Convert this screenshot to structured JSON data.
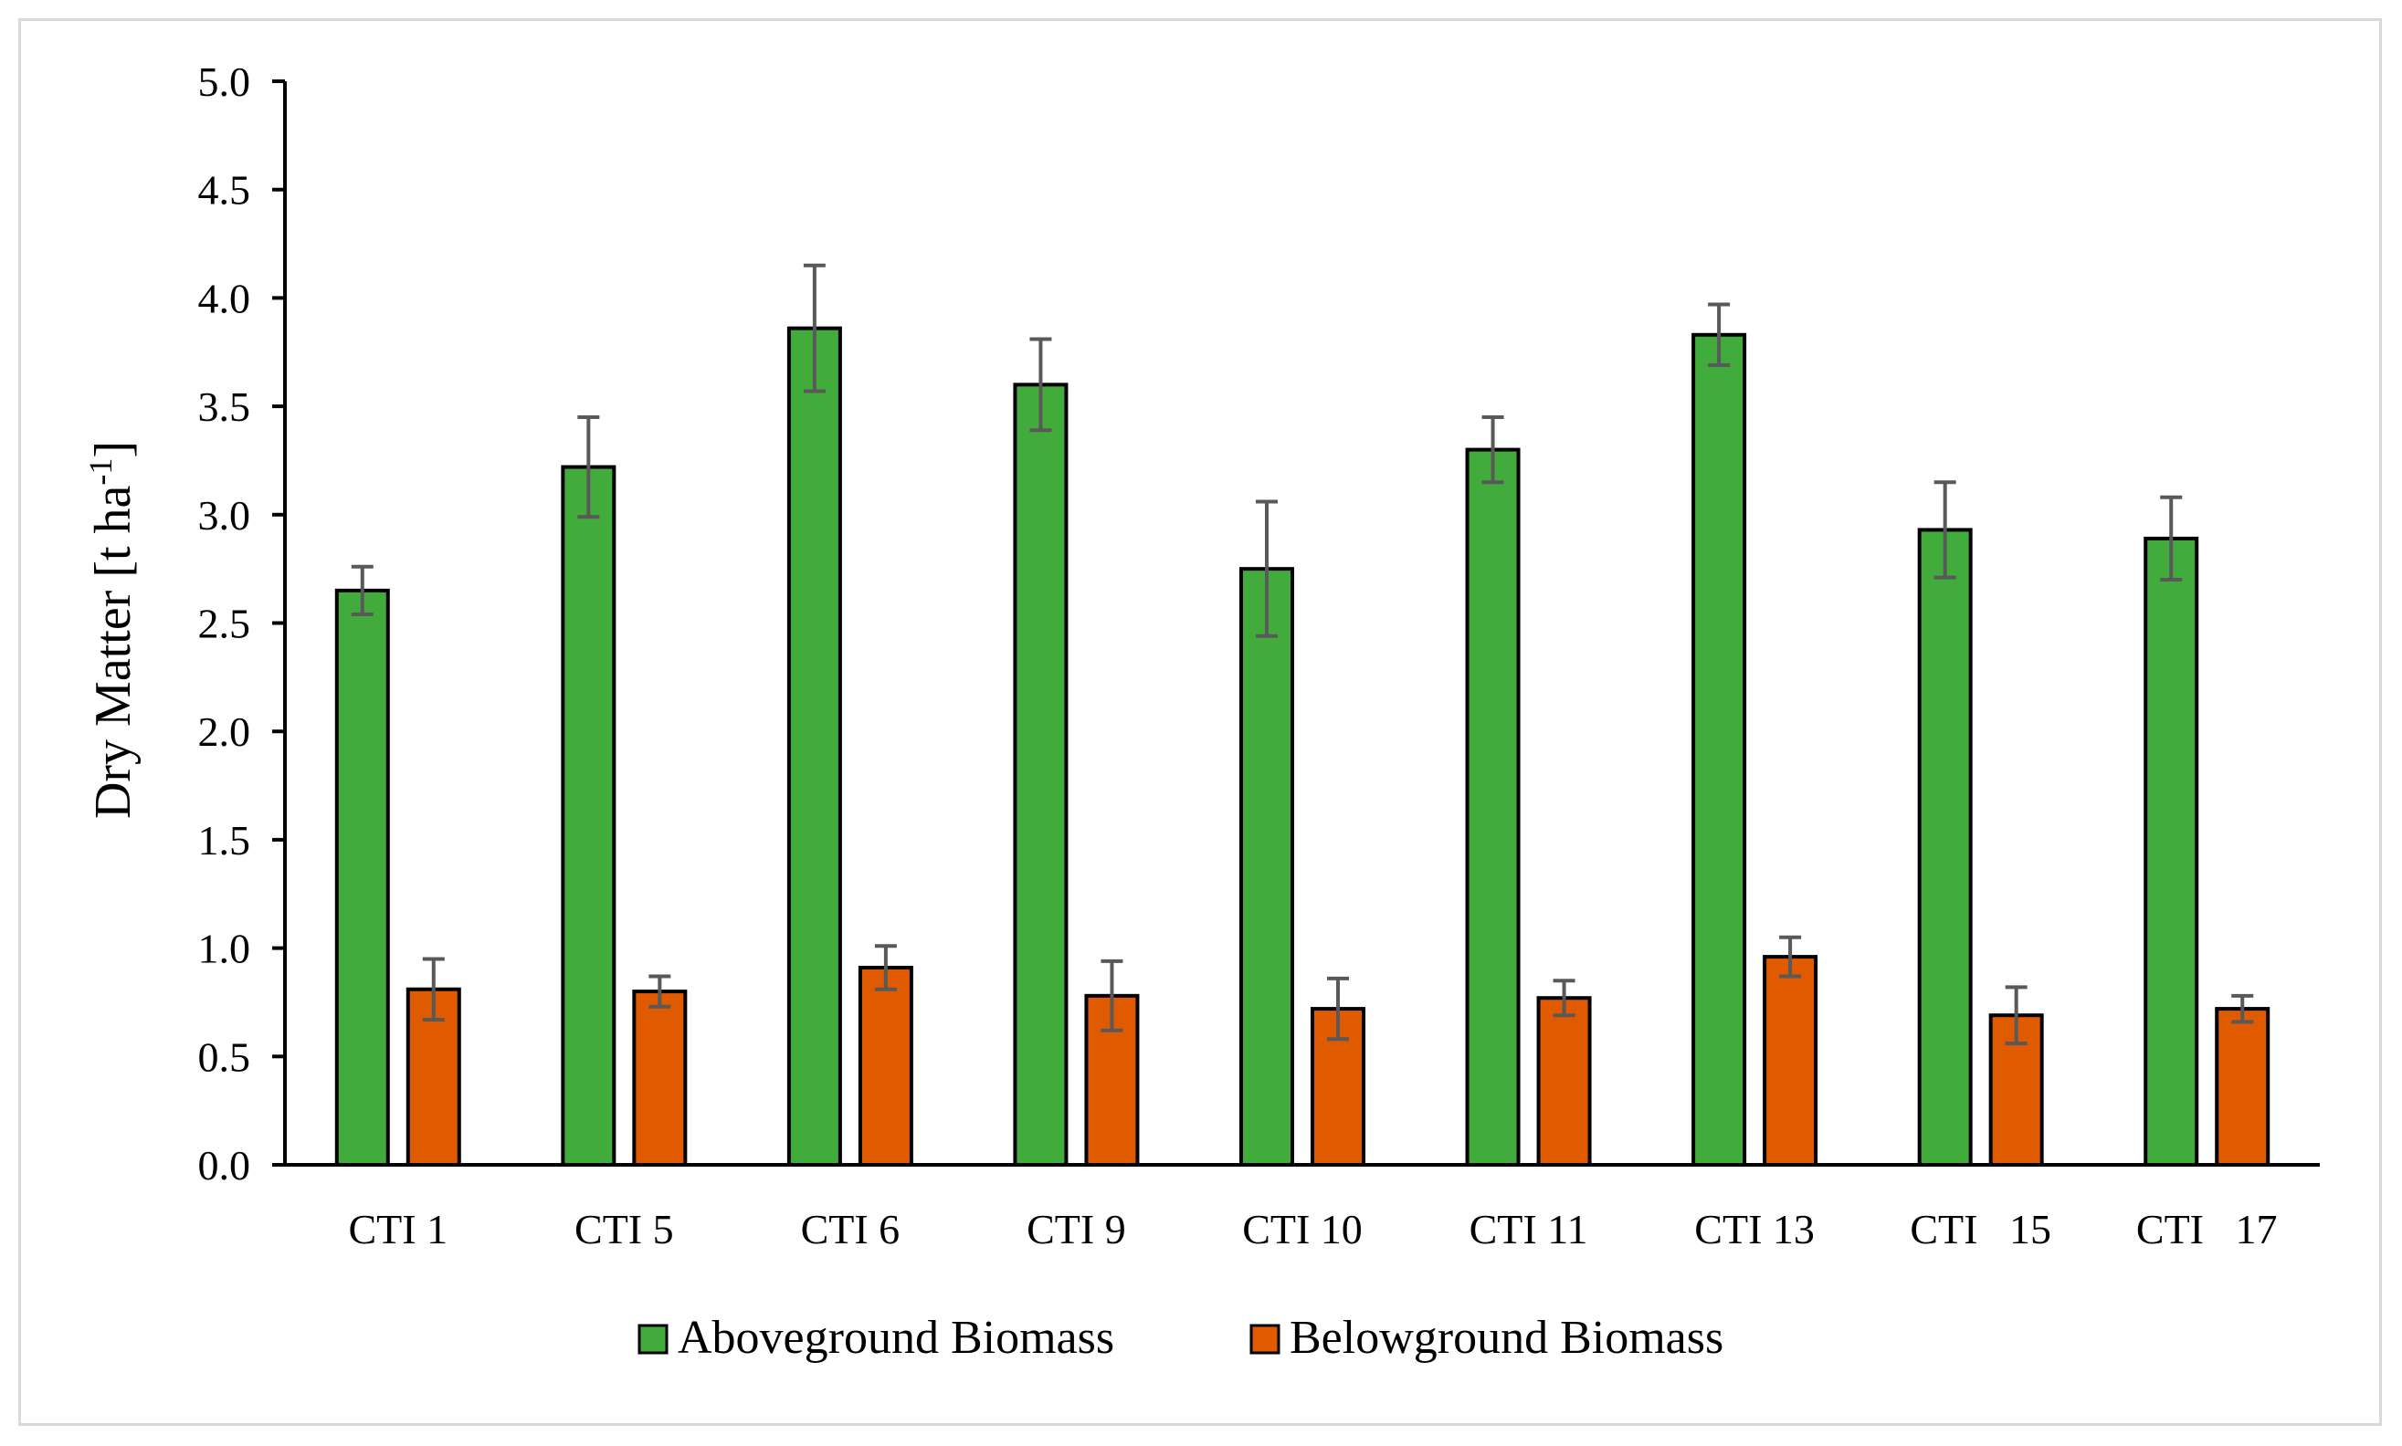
{
  "chart_data": {
    "type": "bar",
    "title": "",
    "xlabel": "",
    "ylabel": "Dry Matter [t  ha",
    "ylabel_superscript": "-1",
    "ylabel_close": "]",
    "ylim": [
      0,
      5.0
    ],
    "ytick_step": 0.5,
    "ytick_labels": [
      "0.0",
      "0.5",
      "1.0",
      "1.5",
      "2.0",
      "2.5",
      "3.0",
      "3.5",
      "4.0",
      "4.5",
      "5.0"
    ],
    "categories": [
      "CTI 1",
      "CTI 5",
      "CTI 6",
      "CTI 9",
      "CTI 10",
      "CTI 11",
      "CTI 13",
      "CTI   15",
      "CTI   17"
    ],
    "series": [
      {
        "name": "Aboveground Biomass",
        "color": "#41ab3c",
        "values": [
          2.65,
          3.22,
          3.86,
          3.6,
          2.75,
          3.3,
          3.83,
          2.93,
          2.89
        ],
        "errors": [
          0.11,
          0.23,
          0.29,
          0.21,
          0.31,
          0.15,
          0.14,
          0.22,
          0.19
        ]
      },
      {
        "name": "Belowground Biomass",
        "color": "#e05a00",
        "values": [
          0.81,
          0.8,
          0.91,
          0.78,
          0.72,
          0.77,
          0.96,
          0.69,
          0.72
        ],
        "errors": [
          0.14,
          0.07,
          0.1,
          0.16,
          0.14,
          0.08,
          0.09,
          0.13,
          0.06
        ]
      }
    ],
    "error_bar_color": "#595959",
    "legend_position": "bottom-center",
    "grid": false
  }
}
